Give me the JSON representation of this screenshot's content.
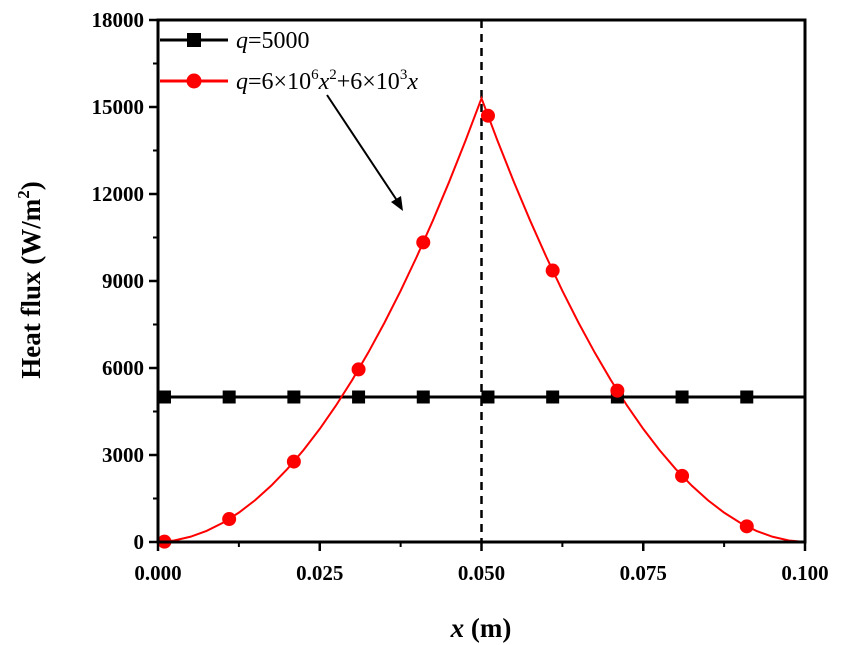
{
  "chart_data": {
    "type": "line",
    "xlabel_var": "x",
    "xlabel_unit": " (m)",
    "ylabel_main": "Heat flux (W/m",
    "ylabel_sup": "2",
    "ylabel_end": ")",
    "xlim": [
      0,
      0.1
    ],
    "ylim": [
      0,
      18000
    ],
    "xticks": [
      0,
      0.025,
      0.05,
      0.075,
      0.1
    ],
    "xtick_labels": [
      "0.000",
      "0.025",
      "0.050",
      "0.075",
      "0.100"
    ],
    "yticks": [
      0,
      3000,
      6000,
      9000,
      12000,
      15000,
      18000
    ],
    "ytick_labels": [
      "0",
      "3000",
      "6000",
      "9000",
      "12000",
      "15000",
      "18000"
    ],
    "grid": false,
    "legend_position": "top-left",
    "reference_line_x": 0.05,
    "series": [
      {
        "name": "q=5000",
        "legend": {
          "var": "q",
          "text": "=5000"
        },
        "color": "#000000",
        "marker": "square",
        "x": [
          0.001,
          0.011,
          0.021,
          0.031,
          0.041,
          0.051,
          0.061,
          0.071,
          0.081,
          0.091
        ],
        "y": [
          5000,
          5000,
          5000,
          5000,
          5000,
          5000,
          5000,
          5000,
          5000,
          5000
        ],
        "line_x": [
          0,
          0.1
        ],
        "line_y": [
          5000,
          5000
        ]
      },
      {
        "name": "q=6×10^6x^2+6×10^3x",
        "legend": {
          "var": "q",
          "a": "=6×10",
          "a_sup": "6",
          "b_var": "x",
          "b_sup": "2",
          "c": "+6×10",
          "c_sup": "3",
          "d_var": "x"
        },
        "color": "#ff0000",
        "marker": "circle",
        "x": [
          0.001,
          0.011,
          0.021,
          0.031,
          0.041,
          0.051,
          0.061,
          0.071,
          0.081,
          0.091
        ],
        "y": [
          12,
          792,
          2772,
          5952,
          10332,
          14700,
          9360,
          5220,
          2280,
          540
        ],
        "line_x": [
          0,
          0.0025,
          0.005,
          0.0075,
          0.01,
          0.0125,
          0.015,
          0.0175,
          0.02,
          0.0225,
          0.025,
          0.0275,
          0.03,
          0.0325,
          0.035,
          0.0375,
          0.04,
          0.0425,
          0.045,
          0.0475,
          0.05,
          0.0525,
          0.055,
          0.0575,
          0.06,
          0.0625,
          0.065,
          0.0675,
          0.07,
          0.0725,
          0.075,
          0.0775,
          0.08,
          0.0825,
          0.085,
          0.0875,
          0.09,
          0.0925,
          0.095,
          0.0975,
          0.1
        ],
        "line_y": [
          0,
          52.5,
          180,
          382.5,
          660,
          1012.5,
          1440,
          1942.5,
          2520,
          3172.5,
          3900,
          4702.5,
          5580,
          6532.5,
          7560,
          8662.5,
          9840,
          11092.5,
          12420,
          13822.5,
          15300,
          13822.5,
          12420,
          11092.5,
          9840,
          8662.5,
          7560,
          6532.5,
          5580,
          4702.5,
          3900,
          3172.5,
          2520,
          1942.5,
          1440,
          1012.5,
          660,
          382.5,
          180,
          52.5,
          0
        ]
      }
    ]
  }
}
